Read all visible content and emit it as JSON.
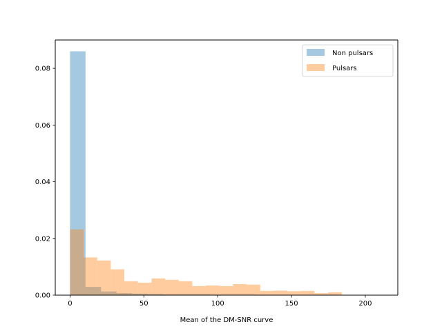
{
  "chart_data": {
    "type": "histogram",
    "title": "",
    "xlabel": "Mean of the DM-SNR curve",
    "ylabel": "",
    "xlim": [
      -10,
      222
    ],
    "ylim": [
      0,
      0.09
    ],
    "xticks": [
      0,
      50,
      100,
      150,
      200
    ],
    "yticks": [
      0.0,
      0.02,
      0.04,
      0.06,
      0.08
    ],
    "xtick_labels": [
      "0",
      "50",
      "100",
      "150",
      "200"
    ],
    "ytick_labels": [
      "0.00",
      "0.02",
      "0.04",
      "0.06",
      "0.08"
    ],
    "grid": false,
    "legend_position": "upper right",
    "series": [
      {
        "name": "Non pulsars",
        "color": "#1f77b4",
        "alpha": 0.4,
        "bin_edges": [
          0,
          10.5,
          21,
          31.5,
          42,
          52.5,
          63,
          73.5,
          84,
          94.5,
          105,
          115.5,
          126,
          136.5,
          147,
          157.5,
          168,
          178.5,
          189,
          199.5,
          210
        ],
        "values": [
          0.086,
          0.0029,
          0.0013,
          0.0007,
          0.0005,
          0.0004,
          0.0003,
          0.0003,
          0.0003,
          0.0002,
          0.0002,
          0.0002,
          0.0001,
          0.0001,
          0.0001,
          0.0001,
          0.0001,
          5e-05,
          5e-05,
          5e-05
        ]
      },
      {
        "name": "Pulsars",
        "color": "#ff7f0e",
        "alpha": 0.4,
        "bin_edges": [
          0,
          9.2,
          18.4,
          27.6,
          36.8,
          46,
          55.2,
          64.4,
          73.6,
          82.8,
          92,
          101.2,
          110.4,
          119.6,
          128.8,
          138,
          147.2,
          156.4,
          165.6,
          174.8,
          184
        ],
        "values": [
          0.0232,
          0.0133,
          0.0122,
          0.0091,
          0.0049,
          0.0044,
          0.0059,
          0.0054,
          0.0049,
          0.0032,
          0.0034,
          0.0032,
          0.0039,
          0.0037,
          0.0015,
          0.0016,
          0.0014,
          0.0015,
          0.0007,
          0.001
        ]
      }
    ]
  }
}
